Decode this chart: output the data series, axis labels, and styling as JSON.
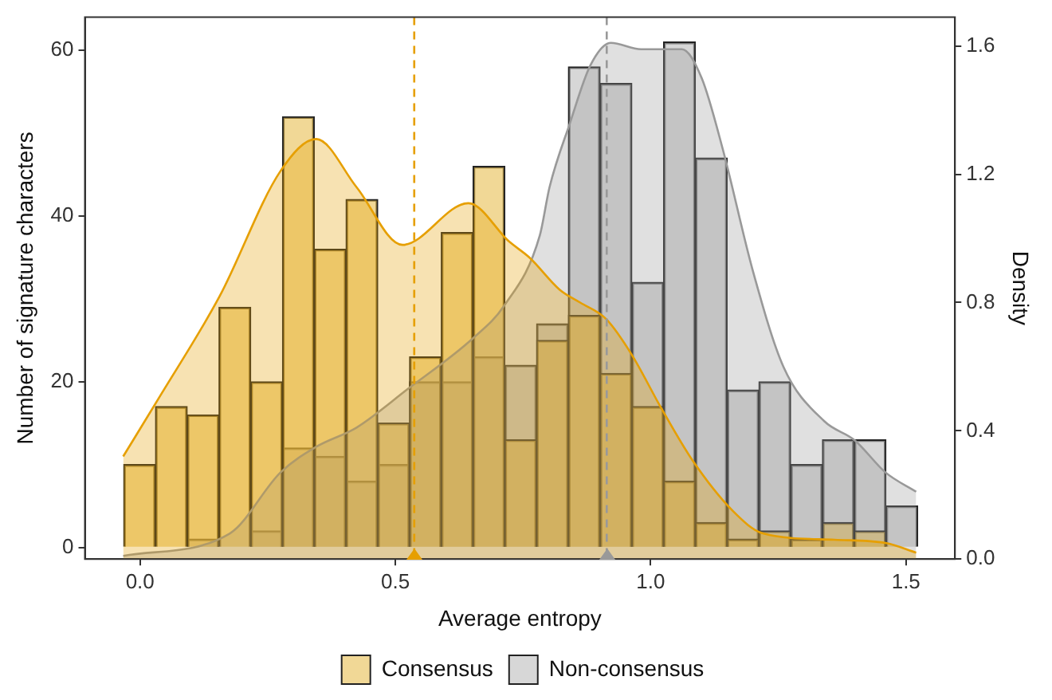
{
  "chart_data": {
    "type": "histogram",
    "xlabel": "Average entropy",
    "ylabel": "Number of signature characters",
    "y2label": "Density",
    "bins": [
      -0.032,
      0.0302,
      0.0924,
      0.1546,
      0.2168,
      0.279,
      0.3412,
      0.4034,
      0.4656,
      0.5278,
      0.59,
      0.6522,
      0.7144,
      0.7766,
      0.8388,
      0.901,
      0.9632,
      1.0254,
      1.0876,
      1.1498,
      1.212,
      1.2742,
      1.3364,
      1.3986,
      1.4608,
      1.523
    ],
    "series": [
      {
        "name": "Consensus",
        "type": "histogram",
        "color": "#e8be50",
        "values": [
          10,
          17,
          16,
          29,
          20,
          52,
          36,
          42,
          15,
          23,
          38,
          46,
          13,
          25,
          28,
          21,
          17,
          8,
          3,
          1,
          2,
          1,
          3,
          2,
          0
        ]
      },
      {
        "name": "Non-consensus",
        "type": "histogram",
        "color": "#bdbdbd",
        "values": [
          0,
          0,
          1,
          0,
          2,
          12,
          11,
          8,
          10,
          20,
          20,
          23,
          22,
          27,
          58,
          56,
          32,
          61,
          47,
          19,
          20,
          10,
          13,
          13,
          5
        ]
      },
      {
        "type": "area",
        "axis": "y2",
        "color": "#e69f00",
        "x": [
          -0.033,
          0.036,
          0.156,
          0.275,
          0.345,
          0.424,
          0.514,
          0.643,
          0.723,
          0.763,
          0.822,
          0.862,
          0.912,
          0.962,
          1.021,
          1.081,
          1.161,
          1.22,
          1.36,
          1.46,
          1.52
        ],
        "values": [
          0.32,
          0.5,
          0.82,
          1.21,
          1.31,
          1.16,
          0.98,
          1.11,
          0.99,
          0.94,
          0.84,
          0.8,
          0.75,
          0.64,
          0.47,
          0.31,
          0.15,
          0.08,
          0.06,
          0.05,
          0.02
        ]
      },
      {
        "type": "area",
        "axis": "y2",
        "color": "#999999",
        "x": [
          -0.033,
          0.176,
          0.275,
          0.345,
          0.424,
          0.524,
          0.653,
          0.713,
          0.783,
          0.802,
          0.842,
          0.882,
          0.922,
          0.981,
          1.061,
          1.1,
          1.141,
          1.2,
          1.26,
          1.34,
          1.4,
          1.46,
          1.52
        ],
        "values": [
          0.01,
          0.08,
          0.27,
          0.35,
          0.41,
          0.53,
          0.69,
          0.79,
          1.01,
          1.16,
          1.36,
          1.54,
          1.61,
          1.59,
          1.59,
          1.5,
          1.28,
          0.9,
          0.6,
          0.43,
          0.37,
          0.27,
          0.21
        ]
      }
    ],
    "xlim": [
      -0.108,
      1.596
    ],
    "xticks": [
      {
        "value": 0,
        "label": "0.0"
      },
      {
        "value": 0.5,
        "label": "0.5"
      },
      {
        "value": 1,
        "label": "1.0"
      },
      {
        "value": 1.5,
        "label": "1.5"
      }
    ],
    "ylim": [
      -1.4,
      64
    ],
    "yticks": [
      0,
      20,
      40,
      60
    ],
    "y2lim": [
      0,
      1.69
    ],
    "y2ticks": [
      {
        "value": 0,
        "label": "0.0"
      },
      {
        "value": 0.4,
        "label": "0.4"
      },
      {
        "value": 0.8,
        "label": "0.8"
      },
      {
        "value": 1.2,
        "label": "1.2"
      },
      {
        "value": 1.6,
        "label": "1.6"
      }
    ],
    "ref_lines": [
      {
        "axis": "x",
        "value": 0.537,
        "color": "#e69f00",
        "line_style": "dashed"
      },
      {
        "axis": "x",
        "value": 0.914,
        "color": "#999999",
        "line_style": "dashed"
      }
    ],
    "grid": false,
    "legend": "bottom"
  }
}
